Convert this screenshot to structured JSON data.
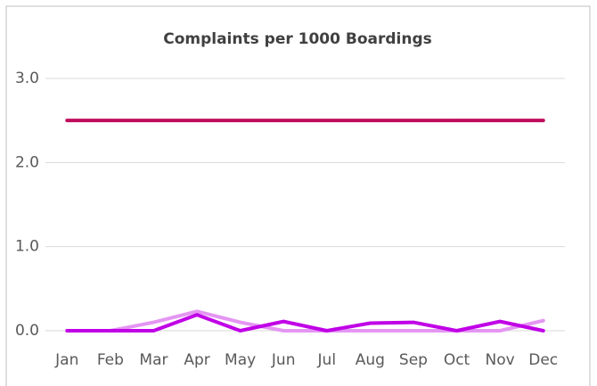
{
  "chart_data": {
    "type": "line",
    "title": "Complaints per 1000 Boardings",
    "categories": [
      "Jan",
      "Feb",
      "Mar",
      "Apr",
      "May",
      "Jun",
      "Jul",
      "Aug",
      "Sep",
      "Oct",
      "Nov",
      "Dec"
    ],
    "series": [
      {
        "color": "#c00d5c",
        "values": [
          2.5,
          2.5,
          2.5,
          2.5,
          2.5,
          2.5,
          2.5,
          2.5,
          2.5,
          2.5,
          2.5,
          2.5
        ]
      },
      {
        "color": "#e496f2",
        "values": [
          0,
          0,
          0.1,
          0.23,
          0.1,
          0,
          0,
          0,
          0,
          0,
          0,
          0.12
        ]
      },
      {
        "color": "#c000e6",
        "values": [
          0,
          0,
          0,
          0.19,
          0,
          0.11,
          0,
          0.09,
          0.1,
          0,
          0.11,
          0
        ]
      }
    ],
    "ylim": [
      0,
      3
    ],
    "yticks": [
      {
        "value": 0,
        "label": "0.0"
      },
      {
        "value": 1,
        "label": "1.0"
      },
      {
        "value": 2,
        "label": "2.0"
      },
      {
        "value": 3,
        "label": "3.0"
      }
    ],
    "grid": true
  }
}
